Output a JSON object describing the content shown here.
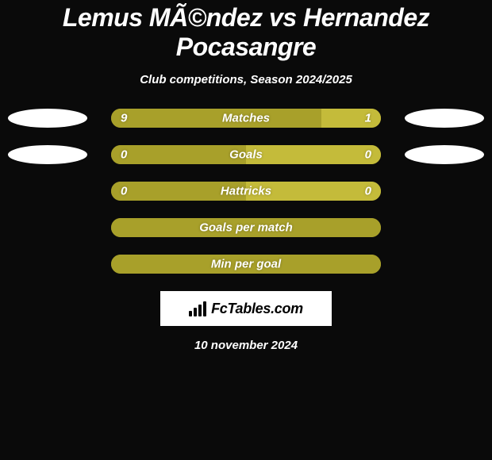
{
  "background_color": "#0a0a0a",
  "title": "Lemus MÃ©ndez vs Hernandez Pocasangre",
  "subtitle": "Club competitions, Season 2024/2025",
  "text_color": "#ffffff",
  "avatar_color": "#ffffff",
  "logo": {
    "text": "FcTables.com",
    "bg": "#ffffff",
    "fg": "#000000"
  },
  "date": "10 november 2024",
  "colors": {
    "left": "#a8a02a",
    "right": "#c4bb3a",
    "full": "#a8a02a",
    "track": "#a8a02a"
  },
  "metrics": [
    {
      "name": "Matches",
      "left_value": "9",
      "right_value": "1",
      "left_pct": 78,
      "right_pct": 22,
      "has_avatars": true,
      "avatar_size": "large"
    },
    {
      "name": "Goals",
      "left_value": "0",
      "right_value": "0",
      "left_pct": 50,
      "right_pct": 50,
      "has_avatars": true,
      "avatar_size": "small"
    },
    {
      "name": "Hattricks",
      "left_value": "0",
      "right_value": "0",
      "left_pct": 50,
      "right_pct": 50,
      "has_avatars": false
    },
    {
      "name": "Goals per match",
      "left_value": "",
      "right_value": "",
      "full": true,
      "has_avatars": false
    },
    {
      "name": "Min per goal",
      "left_value": "",
      "right_value": "",
      "full": true,
      "has_avatars": false
    }
  ]
}
